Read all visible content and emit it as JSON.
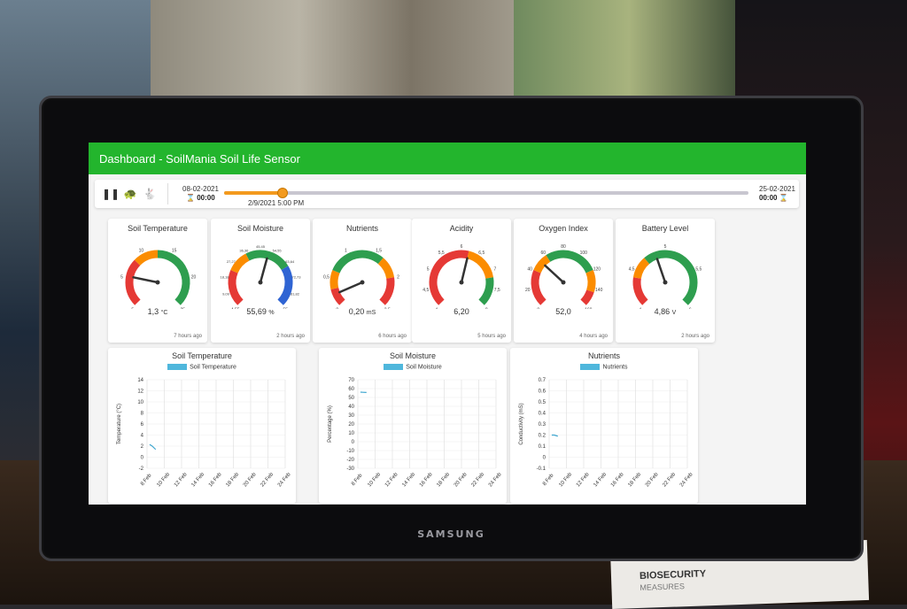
{
  "app": {
    "title": "Dashboard - SoilMania Soil Life Sensor"
  },
  "device": {
    "brand": "SAMSUNG"
  },
  "flyer": {
    "title": "BIOSECURITY",
    "subtitle": "MEASURES"
  },
  "timeline": {
    "start_date": "08-02-2021",
    "start_time": "00:00",
    "end_date": "25-02-2021",
    "end_time": "00:00",
    "current": "2/9/2021 5:00 PM",
    "progress": 0.11,
    "controls": [
      "pause-icon",
      "turtle-icon",
      "rabbit-icon"
    ]
  },
  "gauges": [
    {
      "title": "Soil Temperature",
      "value": "1,3",
      "unit": "°C",
      "ago": "7 hours ago",
      "min": -5,
      "max": 25,
      "ticks": [
        "5",
        "10",
        "15",
        "20"
      ],
      "needle": 1.3,
      "min_label": "5",
      "max_label": "25",
      "bands": [
        {
          "to": 0.33,
          "color": "#e53935"
        },
        {
          "to": 0.5,
          "color": "#fb8c00"
        },
        {
          "to": 1,
          "color": "#2e9e4f"
        }
      ]
    },
    {
      "title": "Soil Moisture",
      "value": "55,69",
      "unit": "%",
      "ago": "2 hours ago",
      "min": 0,
      "max": 100,
      "ticks": [
        "9,09",
        "18,18",
        "27,27",
        "36,36",
        "45,45",
        "54,55",
        "63,64",
        "72,73",
        "81,82"
      ],
      "needle": 55.69,
      "min_label": "4,55",
      "max_label": "55",
      "bands": [
        {
          "to": 0.25,
          "color": "#e53935"
        },
        {
          "to": 0.4,
          "color": "#fb8c00"
        },
        {
          "to": 0.72,
          "color": "#2e9e4f"
        },
        {
          "to": 1,
          "color": "#2f64d3"
        }
      ]
    },
    {
      "title": "Nutrients",
      "value": "0,20",
      "unit": "mS",
      "ago": "6 hours ago",
      "min": 0,
      "max": 2.5,
      "ticks": [
        "0,5",
        "1",
        "1,5",
        "2"
      ],
      "needle": 0.2,
      "min_label": "0",
      "max_label": "2,5",
      "bands": [
        {
          "to": 0.12,
          "color": "#e53935"
        },
        {
          "to": 0.25,
          "color": "#fb8c00"
        },
        {
          "to": 0.65,
          "color": "#2e9e4f"
        },
        {
          "to": 0.8,
          "color": "#fb8c00"
        },
        {
          "to": 1,
          "color": "#e53935"
        }
      ]
    },
    {
      "title": "Acidity",
      "value": "6,20",
      "unit": "",
      "ago": "5 hours ago",
      "min": 4,
      "max": 8,
      "ticks": [
        "4,5",
        "5",
        "5,5",
        "6",
        "6,5",
        "7",
        "7,5"
      ],
      "needle": 6.2,
      "min_label": "4",
      "max_label": "8",
      "bands": [
        {
          "to": 0.55,
          "color": "#e53935"
        },
        {
          "to": 0.8,
          "color": "#fb8c00"
        },
        {
          "to": 1,
          "color": "#2e9e4f"
        }
      ]
    },
    {
      "title": "Oxygen Index",
      "value": "52,0",
      "unit": "",
      "ago": "4 hours ago",
      "min": 0,
      "max": 160,
      "ticks": [
        "20",
        "40",
        "60",
        "80",
        "100",
        "120",
        "140"
      ],
      "needle": 52.0,
      "min_label": "0",
      "max_label": "160",
      "bands": [
        {
          "to": 0.25,
          "color": "#e53935"
        },
        {
          "to": 0.38,
          "color": "#fb8c00"
        },
        {
          "to": 0.75,
          "color": "#2e9e4f"
        },
        {
          "to": 0.9,
          "color": "#fb8c00"
        },
        {
          "to": 1,
          "color": "#e53935"
        }
      ]
    },
    {
      "title": "Battery Level",
      "value": "4,86",
      "unit": "V",
      "ago": "2 hours ago",
      "min": 4,
      "max": 6,
      "ticks": [
        "4,5",
        "5",
        "5,5"
      ],
      "needle": 4.86,
      "min_label": "4",
      "max_label": "6",
      "bands": [
        {
          "to": 0.2,
          "color": "#e53935"
        },
        {
          "to": 0.35,
          "color": "#fb8c00"
        },
        {
          "to": 1,
          "color": "#2e9e4f"
        }
      ]
    }
  ],
  "chart_data": [
    {
      "type": "line",
      "title": "Soil Temperature",
      "ylabel": "Temperature (°C)",
      "series": [
        {
          "name": "Soil Temperature",
          "x": [
            0.3,
            0.6,
            1.0
          ],
          "y": [
            2.3,
            2.0,
            1.4
          ]
        }
      ],
      "x_ticks": [
        "8 Feb",
        "10 Feb",
        "12 Feb",
        "14 Feb",
        "16 Feb",
        "18 Feb",
        "20 Feb",
        "22 Feb",
        "24 Feb"
      ],
      "y_ticks": [
        -2,
        0,
        2,
        4,
        6,
        8,
        10,
        12,
        14
      ],
      "ylim": [
        -2,
        14
      ],
      "xlim": [
        0,
        16
      ]
    },
    {
      "type": "line",
      "title": "Soil Moisture",
      "ylabel": "Percentage (%)",
      "series": [
        {
          "name": "Soil Moisture",
          "x": [
            0.3,
            0.6,
            1.0
          ],
          "y": [
            56,
            55.8,
            55.6
          ]
        }
      ],
      "x_ticks": [
        "8 Feb",
        "10 Feb",
        "12 Feb",
        "14 Feb",
        "16 Feb",
        "18 Feb",
        "20 Feb",
        "22 Feb",
        "24 Feb"
      ],
      "y_ticks": [
        -30,
        -20,
        -10,
        0,
        10,
        20,
        30,
        40,
        50,
        60,
        70
      ],
      "ylim": [
        -30,
        70
      ],
      "xlim": [
        0,
        16
      ]
    },
    {
      "type": "line",
      "title": "Nutrients",
      "ylabel": "Conductivity (mS)",
      "series": [
        {
          "name": "Nutrients",
          "x": [
            0.3,
            0.6,
            1.0
          ],
          "y": [
            0.2,
            0.2,
            0.19
          ]
        }
      ],
      "x_ticks": [
        "8 Feb",
        "10 Feb",
        "12 Feb",
        "14 Feb",
        "16 Feb",
        "18 Feb",
        "20 Feb",
        "22 Feb",
        "24 Feb"
      ],
      "y_ticks": [
        -0.1,
        0,
        0.1,
        0.2,
        0.3,
        0.4,
        0.5,
        0.6,
        0.7
      ],
      "ylim": [
        -0.1,
        0.7
      ],
      "xlim": [
        0,
        16
      ]
    }
  ]
}
